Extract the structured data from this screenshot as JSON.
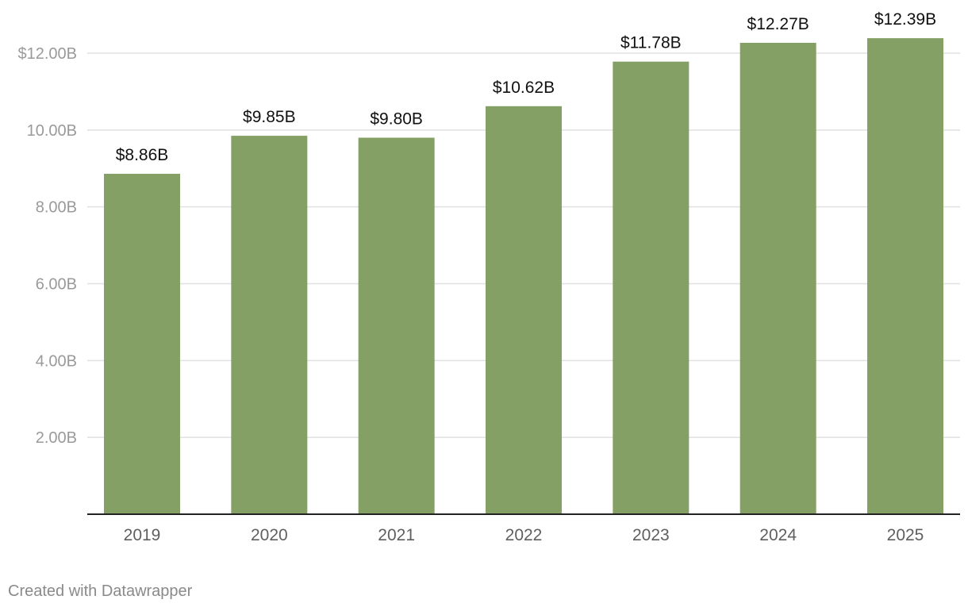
{
  "chart_data": {
    "type": "bar",
    "categories": [
      "2019",
      "2020",
      "2021",
      "2022",
      "2023",
      "2024",
      "2025"
    ],
    "values": [
      8.86,
      9.85,
      9.8,
      10.62,
      11.78,
      12.27,
      12.39
    ],
    "data_labels": [
      "$8.86B",
      "$9.85B",
      "$9.80B",
      "$10.62B",
      "$11.78B",
      "$12.27B",
      "$12.39B"
    ],
    "title": "",
    "xlabel": "",
    "ylabel": "",
    "ylim": [
      0,
      12
    ],
    "yticks": [
      2,
      4,
      6,
      8,
      10,
      12
    ],
    "ytick_labels": [
      "2.00B",
      "4.00B",
      "6.00B",
      "8.00B",
      "10.00B",
      "$12.00B"
    ],
    "grid": true,
    "legend": "none"
  },
  "colors": {
    "bar": "#84a064",
    "gridline": "#e0e0e0",
    "axis": "#222222",
    "tick_label": "#9a9a9a",
    "x_label": "#5f5f5f",
    "data_label": "#111111"
  },
  "footer": {
    "credit": "Created with Datawrapper"
  }
}
